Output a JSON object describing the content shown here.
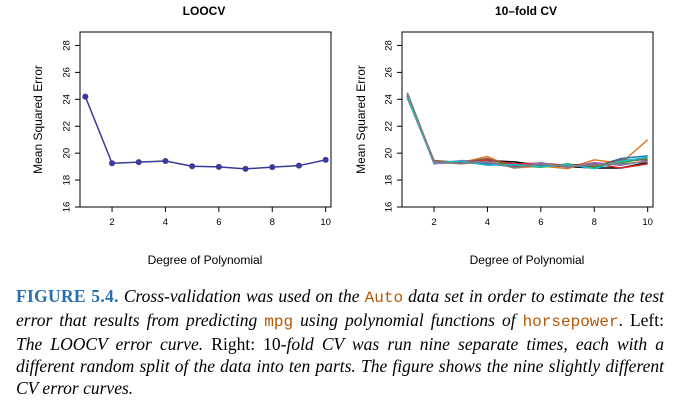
{
  "colors": {
    "loocv_line": "#3a3a9a",
    "cv_series": [
      "#000000",
      "#e07b25",
      "#1f77b4",
      "#2ca02c",
      "#d62728",
      "#9467bd",
      "#8c564b",
      "#17becf",
      "#7f7f7f"
    ],
    "caption_label": "#2a6fad",
    "caption_code": "#b35806"
  },
  "chart_data": [
    {
      "type": "line",
      "title": "LOOCV",
      "xlabel": "Degree of Polynomial",
      "ylabel": "Mean Squared Error",
      "xlim": [
        0.8,
        10.2
      ],
      "ylim": [
        16,
        29
      ],
      "xticks": [
        "2",
        "4",
        "6",
        "8",
        "10"
      ],
      "yticks": [
        "16",
        "18",
        "20",
        "22",
        "24",
        "26",
        "28"
      ],
      "x": [
        1,
        2,
        3,
        4,
        5,
        6,
        7,
        8,
        9,
        10
      ],
      "series": [
        {
          "values": [
            24.2,
            19.25,
            19.33,
            19.42,
            19.03,
            18.98,
            18.83,
            18.96,
            19.07,
            19.5
          ]
        }
      ]
    },
    {
      "type": "line",
      "title": "10–fold CV",
      "xlabel": "Degree of Polynomial",
      "ylabel": "Mean Squared Error",
      "xlim": [
        0.8,
        10.2
      ],
      "ylim": [
        16,
        29
      ],
      "xticks": [
        "2",
        "4",
        "6",
        "8",
        "10"
      ],
      "yticks": [
        "16",
        "18",
        "20",
        "22",
        "24",
        "26",
        "28"
      ],
      "x": [
        1,
        2,
        3,
        4,
        5,
        6,
        7,
        8,
        9,
        10
      ],
      "series": [
        {
          "values": [
            24.2,
            19.3,
            19.4,
            19.45,
            19.35,
            19.1,
            19.0,
            18.9,
            18.9,
            19.3
          ]
        },
        {
          "values": [
            24.5,
            19.35,
            19.3,
            19.75,
            18.9,
            19.05,
            18.85,
            19.5,
            19.25,
            21.0
          ]
        },
        {
          "values": [
            24.3,
            19.25,
            19.3,
            19.2,
            19.0,
            19.1,
            19.05,
            19.0,
            19.6,
            19.8
          ]
        },
        {
          "values": [
            24.4,
            19.4,
            19.35,
            19.35,
            19.1,
            18.95,
            19.2,
            18.95,
            19.3,
            19.6
          ]
        },
        {
          "values": [
            24.1,
            19.3,
            19.25,
            19.5,
            19.2,
            19.25,
            19.1,
            19.2,
            18.9,
            19.2
          ]
        },
        {
          "values": [
            24.35,
            19.2,
            19.45,
            19.3,
            18.95,
            19.3,
            18.95,
            19.3,
            19.1,
            19.45
          ]
        },
        {
          "values": [
            24.25,
            19.45,
            19.3,
            19.6,
            19.05,
            19.15,
            19.1,
            19.05,
            19.5,
            19.5
          ]
        },
        {
          "values": [
            24.15,
            19.3,
            19.4,
            19.1,
            19.15,
            19.0,
            19.15,
            18.85,
            19.4,
            19.7
          ]
        },
        {
          "values": [
            24.45,
            19.35,
            19.2,
            19.4,
            18.9,
            19.2,
            19.0,
            19.15,
            19.2,
            19.35
          ]
        }
      ]
    }
  ],
  "caption": {
    "label": "FIGURE 5.4.",
    "t1": " Cross-validation was used on the ",
    "code1": "Auto",
    "t2": " data set in order to estimate the test error that results from predicting ",
    "code2": "mpg",
    "t3": " using polynomial functions of ",
    "code3": "horsepower",
    "t4": ". Left: ",
    "t5": "The LOOCV error curve.",
    "t6": " Right: 10-",
    "t7": "fold CV was run nine separate times, each with a different random split of the data into ten parts. The figure shows the nine slightly different CV error curves."
  }
}
